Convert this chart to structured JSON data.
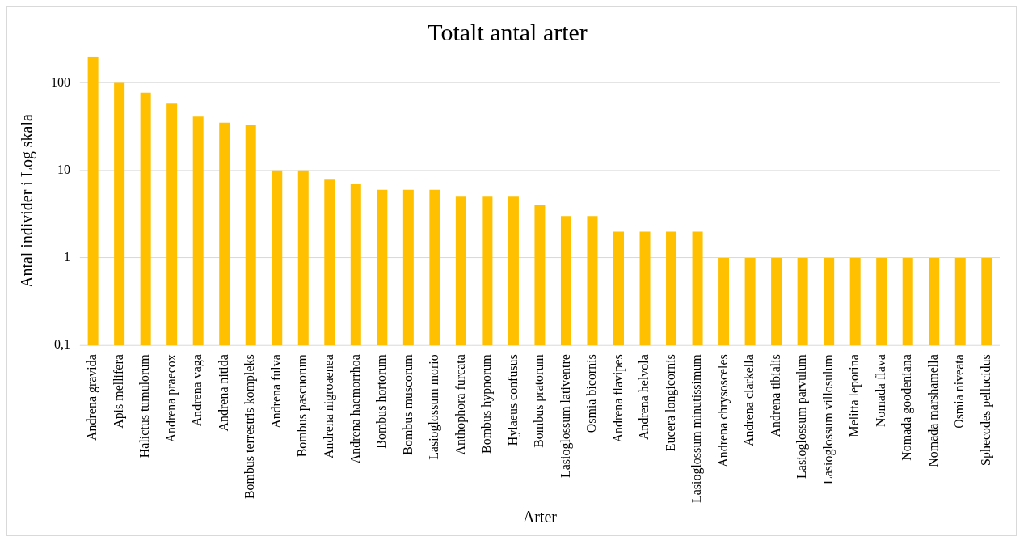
{
  "chart_data": {
    "type": "bar",
    "title": "Totalt antal arter",
    "xlabel": "Arter",
    "ylabel": "Antal individer i Log skala",
    "categories": [
      "Andrena gravida",
      "Apis mellifera",
      "Halictus tumulorum",
      "Andrena praecox",
      "Andrena vaga",
      "Andrena nitida",
      "Bombus terrestris kompleks",
      "Andrena fulva",
      "Bombus pascuorum",
      "Andrena nigroaenea",
      "Andrena haemorrhoa",
      "Bombus hortorum",
      "Bombus muscorum",
      "Lasioglossum morio",
      "Anthophora furcata",
      "Bombus hypnorum",
      "Hylaeus confusus",
      "Bombus pratorum",
      "Lasioglossum lativentre",
      "Osmia bicornis",
      "Andrena flavipes",
      "Andrena helvola",
      "Eucera longicornis",
      "Lasioglossum minutissimum",
      "Andrena chrysosceles",
      "Andrena clarkella",
      "Andrena tibialis",
      "Lasioglossum parvulum",
      "Lasioglossum villosulum",
      "Melitta leporina",
      "Nomada flava",
      "Nomada goodeniana",
      "Nomada marshamella",
      "Osmia niveata",
      "Sphecodes pellucidus"
    ],
    "values": [
      200,
      100,
      77,
      59,
      41,
      35,
      33,
      10,
      10,
      8,
      7,
      6,
      6,
      6,
      5,
      5,
      5,
      4,
      3,
      3,
      2,
      2,
      2,
      2,
      1,
      1,
      1,
      1,
      1,
      1,
      1,
      1,
      1,
      1,
      1
    ],
    "color": "#ffc000",
    "log": "y",
    "ylim": [
      0.1,
      200
    ],
    "yticks": [
      {
        "value": 0.1,
        "label": "0,1"
      },
      1,
      10,
      100
    ],
    "grid": "y"
  }
}
